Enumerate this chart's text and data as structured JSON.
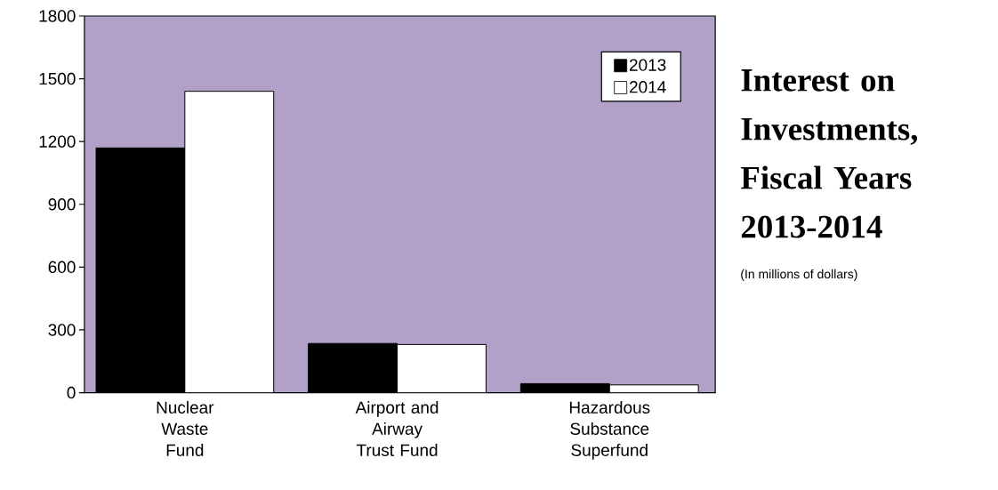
{
  "chart_data": {
    "type": "bar",
    "title": "Interest on Investments, Fiscal Years 2013-2014",
    "subtitle": "(In millions of dollars)",
    "categories": [
      "Nuclear Waste Fund",
      "Airport and Airway Trust Fund",
      "Hazardous Substance Superfund"
    ],
    "series": [
      {
        "name": "2013",
        "color": "#000000",
        "values": [
          1170,
          235,
          43
        ]
      },
      {
        "name": "2014",
        "color": "#ffffff",
        "values": [
          1440,
          230,
          37
        ]
      }
    ],
    "ylim": [
      0,
      1800
    ],
    "yticks": [
      0,
      300,
      600,
      900,
      1200,
      1500,
      1800
    ],
    "legend": "top right"
  }
}
